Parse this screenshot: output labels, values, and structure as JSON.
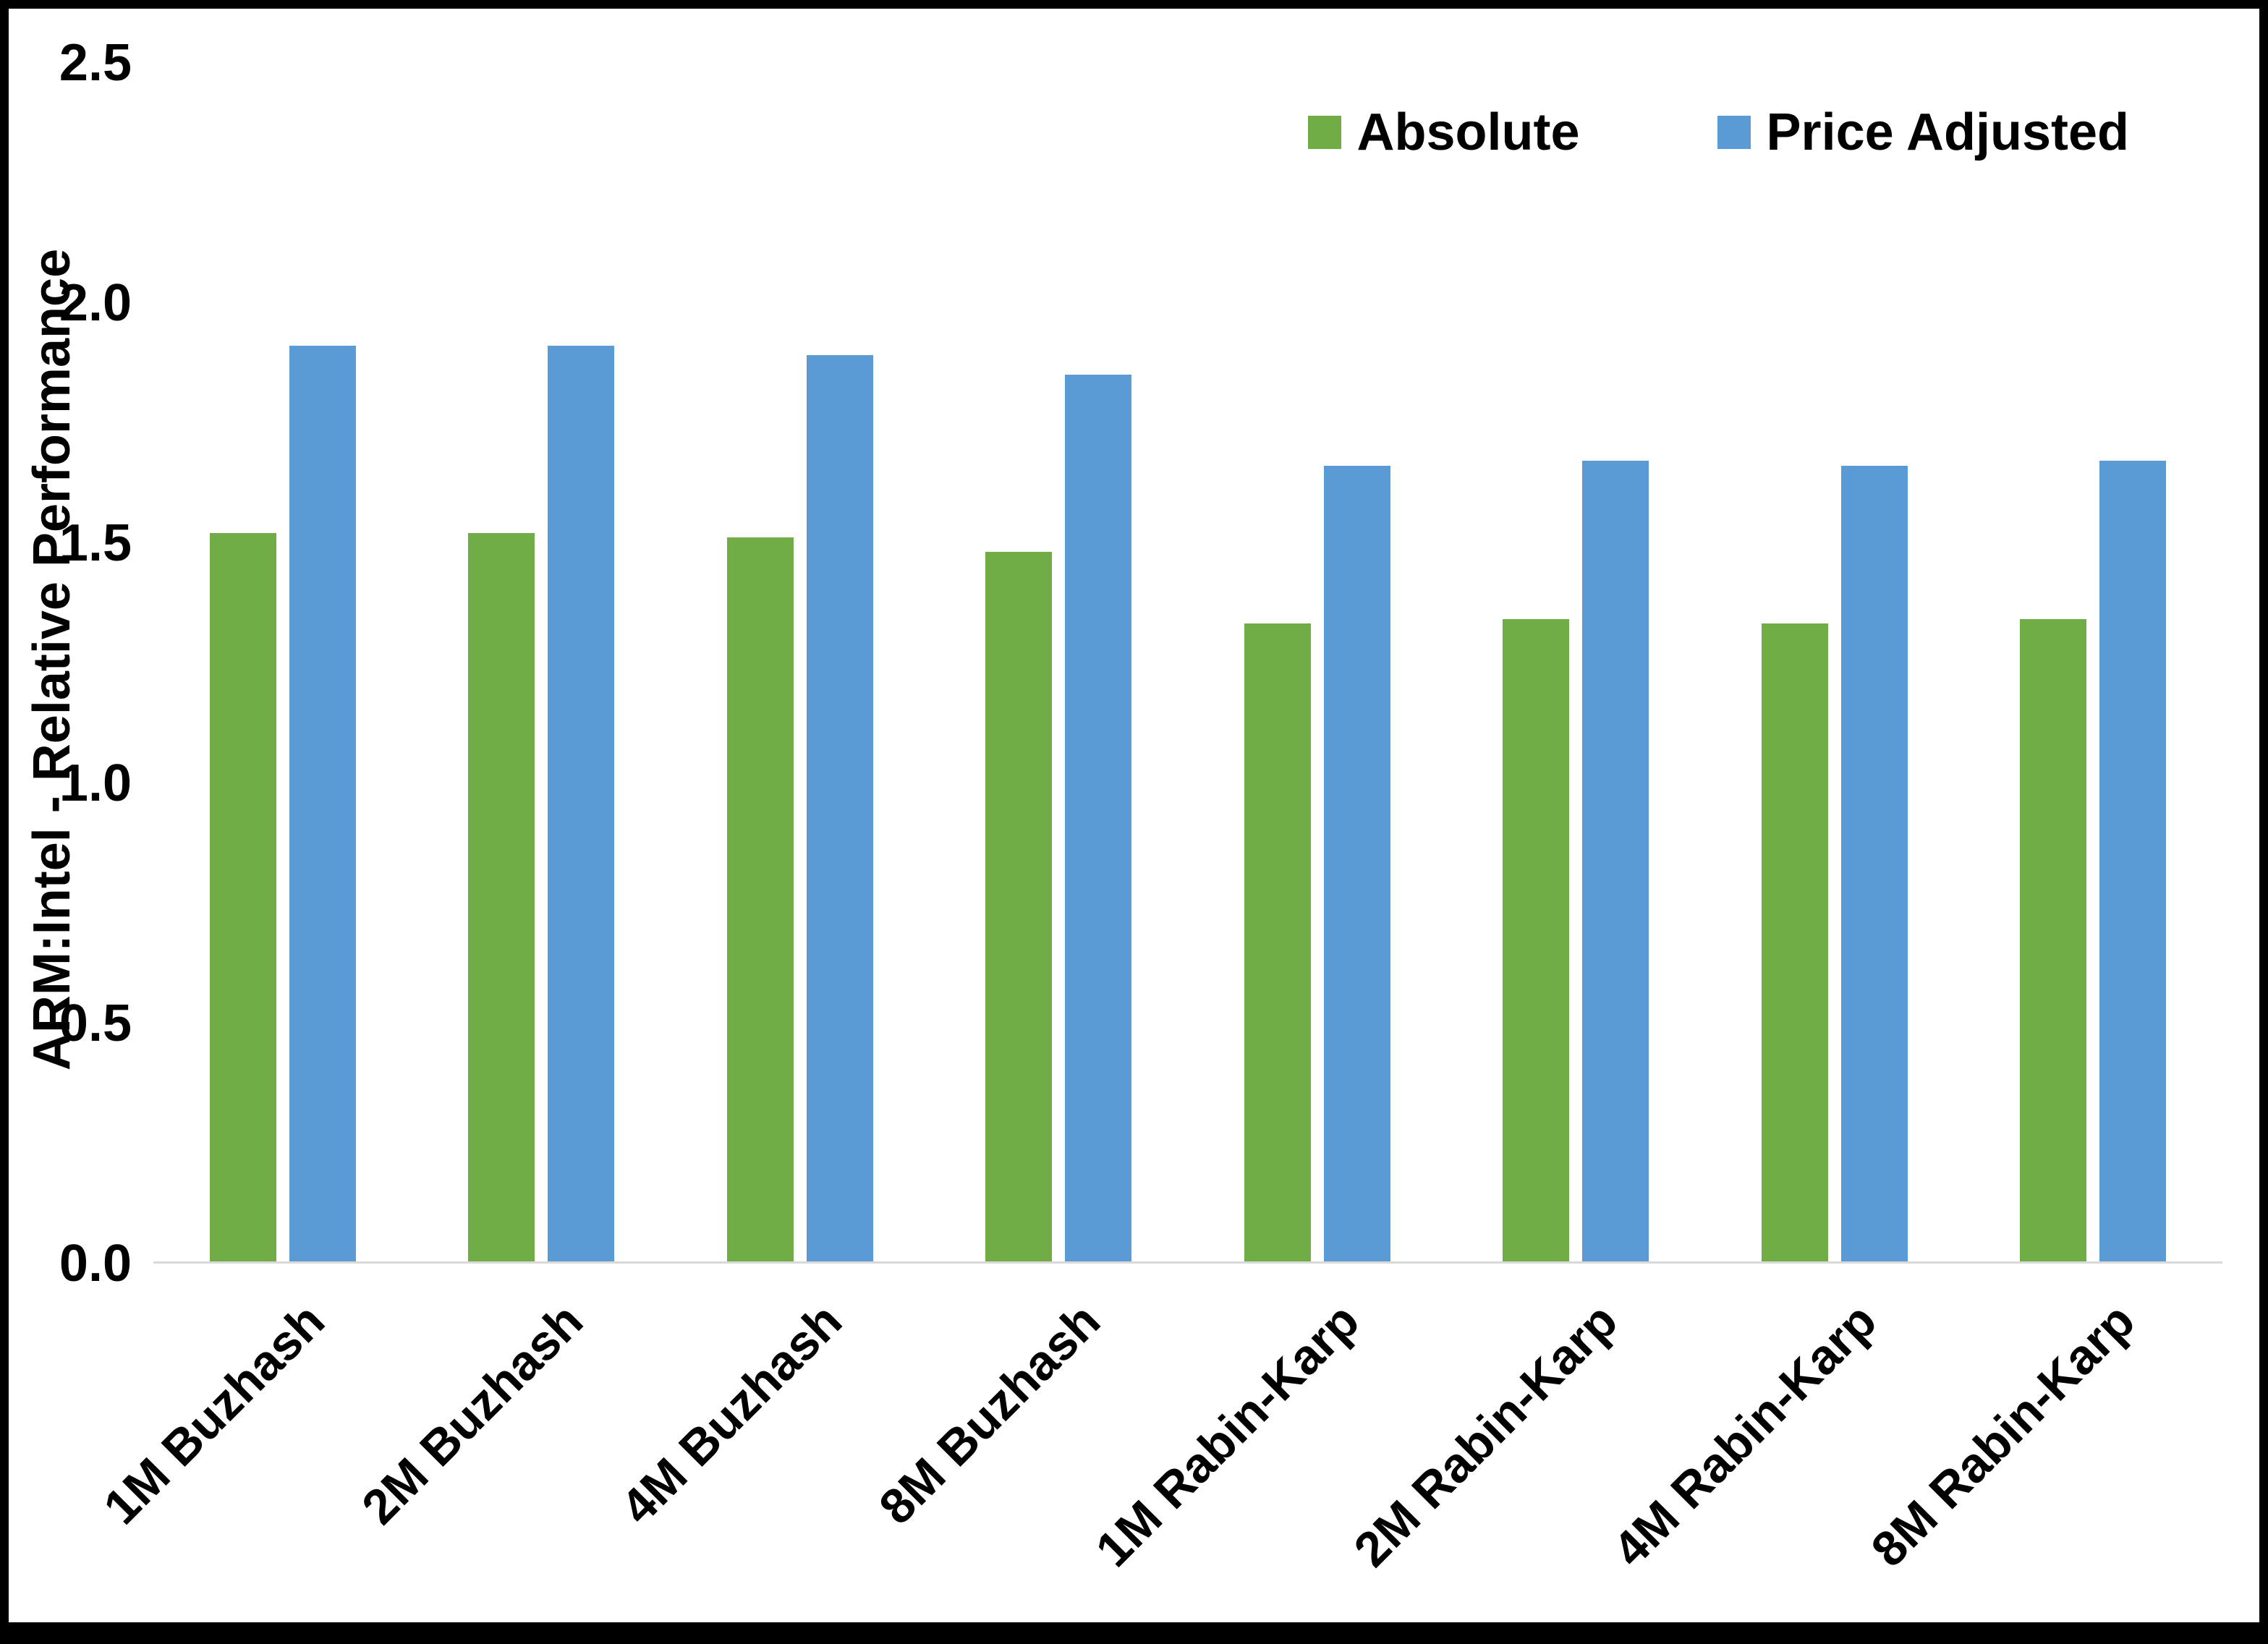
{
  "chart_data": {
    "type": "bar",
    "title": "",
    "categories": [
      "1M Buzhash",
      "2M Buzhash",
      "4M Buzhash",
      "8M Buzhash",
      "1M Rabin-Karp",
      "2M Rabin-Karp",
      "4M Rabin-Karp",
      "8M Rabin-Karp"
    ],
    "series": [
      {
        "name": "Absolute",
        "color": "#70AD47",
        "values": [
          1.52,
          1.52,
          1.51,
          1.48,
          1.33,
          1.34,
          1.33,
          1.34
        ]
      },
      {
        "name": "Price Adjusted",
        "color": "#5B9BD5",
        "values": [
          1.91,
          1.91,
          1.89,
          1.85,
          1.66,
          1.67,
          1.66,
          1.67
        ]
      }
    ],
    "xlabel": "",
    "ylabel": "ARM:Intel - Relative Performance",
    "ylim": [
      0,
      2.5
    ],
    "ytick_labels": [
      "0.0",
      "0.5",
      "1.0",
      "1.5",
      "2.0",
      "2.5"
    ],
    "grid": false,
    "legend_position": "top-right"
  }
}
